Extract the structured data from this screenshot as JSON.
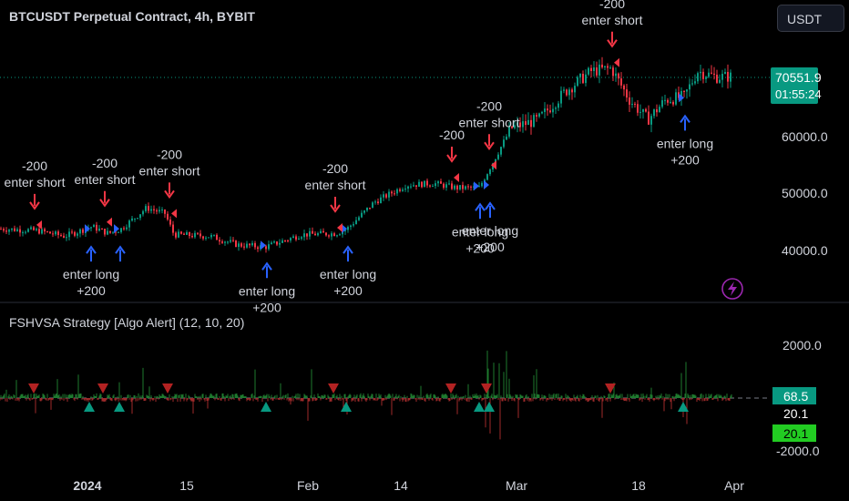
{
  "header": {
    "title": "BTCUSDT Perpetual Contract, 4h, BYBIT",
    "currency": "USDT"
  },
  "price_panel": {
    "last_price": "70551.9",
    "countdown": "01:55:24",
    "last_price_color": "#089981"
  },
  "indicator_panel": {
    "title": "FSHVSA Strategy [Algo Alert] (12, 10, 20)",
    "tag_value_1": "68.5",
    "tag_value_2": "20.1",
    "tag_value_3": "20.1",
    "tag_color_1": "#089981",
    "tag_color_3": "#22cc22"
  },
  "chart_data": [
    {
      "type": "candlestick",
      "title": "BTCUSDT Perpetual Contract, 4h, BYBIT",
      "y_ticks": [
        "60000.0",
        "50000.0",
        "40000.0"
      ],
      "ylim": [
        33000,
        82000
      ],
      "x_ticks": [
        "2024",
        "15",
        "Feb",
        "14",
        "Mar",
        "18",
        "Apr"
      ],
      "grid": false,
      "up_color": "#089981",
      "down_color": "#f23645",
      "anchor_prices": [
        {
          "x": 0,
          "price": 43800
        },
        {
          "x": 40,
          "price": 43500
        },
        {
          "x": 70,
          "price": 42500
        },
        {
          "x": 100,
          "price": 44200
        },
        {
          "x": 118,
          "price": 43000
        },
        {
          "x": 132,
          "price": 43800
        },
        {
          "x": 160,
          "price": 47500
        },
        {
          "x": 180,
          "price": 46500
        },
        {
          "x": 190,
          "price": 42800
        },
        {
          "x": 230,
          "price": 42500
        },
        {
          "x": 260,
          "price": 41000
        },
        {
          "x": 290,
          "price": 40600
        },
        {
          "x": 330,
          "price": 42800
        },
        {
          "x": 368,
          "price": 43000
        },
        {
          "x": 380,
          "price": 43800
        },
        {
          "x": 410,
          "price": 48500
        },
        {
          "x": 445,
          "price": 51500
        },
        {
          "x": 475,
          "price": 51800
        },
        {
          "x": 500,
          "price": 51000
        },
        {
          "x": 525,
          "price": 51000
        },
        {
          "x": 540,
          "price": 55500
        },
        {
          "x": 560,
          "price": 61500
        },
        {
          "x": 590,
          "price": 63000
        },
        {
          "x": 620,
          "price": 68000
        },
        {
          "x": 648,
          "price": 71500
        },
        {
          "x": 670,
          "price": 72000
        },
        {
          "x": 690,
          "price": 66500
        },
        {
          "x": 710,
          "price": 63000
        },
        {
          "x": 730,
          "price": 66500
        },
        {
          "x": 750,
          "price": 67000
        },
        {
          "x": 765,
          "price": 71500
        },
        {
          "x": 785,
          "price": 70500
        },
        {
          "x": 803,
          "price": 70550
        }
      ],
      "signals": [
        {
          "kind": "long",
          "x": 100,
          "price": 43500,
          "label": [
            "enter long",
            "+200"
          ]
        },
        {
          "kind": "long",
          "x": 132,
          "price": 43500,
          "label": []
        },
        {
          "kind": "long",
          "x": 293,
          "price": 40600,
          "label": [
            "enter long",
            "+200"
          ]
        },
        {
          "kind": "long",
          "x": 382,
          "price": 43500,
          "label": [
            "enter long",
            "+200"
          ]
        },
        {
          "kind": "long",
          "x": 527,
          "price": 51000,
          "label": [
            "enter long",
            "+200"
          ]
        },
        {
          "kind": "long",
          "x": 538,
          "price": 51200,
          "label": [
            "enter long",
            "+200"
          ]
        },
        {
          "kind": "long",
          "x": 752,
          "price": 66500,
          "label": [
            "enter long",
            "+200"
          ]
        },
        {
          "kind": "short",
          "x": 38,
          "price": 44500,
          "label": [
            "-200",
            "enter short"
          ]
        },
        {
          "kind": "short",
          "x": 115,
          "price": 45000,
          "label": [
            "-200",
            "enter short"
          ]
        },
        {
          "kind": "short",
          "x": 186,
          "price": 46500,
          "label": [
            "-200",
            "enter short"
          ]
        },
        {
          "kind": "short",
          "x": 368,
          "price": 44000,
          "label": [
            "-200",
            "enter short"
          ]
        },
        {
          "kind": "short",
          "x": 496,
          "price": 52800,
          "label": [
            "-200"
          ]
        },
        {
          "kind": "short",
          "x": 537,
          "price": 55000,
          "label": [
            "-200",
            "enter short"
          ]
        },
        {
          "kind": "short",
          "x": 672,
          "price": 73000,
          "label": [
            "-200",
            "enter short"
          ]
        }
      ]
    },
    {
      "type": "bar",
      "title": "FSHVSA Strategy [Algo Alert] (12, 10, 20)",
      "y_ticks": [
        "2000.0",
        "-2000.0"
      ],
      "ylim": [
        -2500,
        2500
      ],
      "zero_line": 0,
      "pos_color": "#1e7a2e",
      "neg_color": "#a02a2a",
      "signals_up_x": [
        98,
        131,
        292,
        380,
        526,
        537,
        750
      ],
      "signals_down_x": [
        37,
        113,
        184,
        366,
        495,
        534,
        670
      ]
    }
  ]
}
